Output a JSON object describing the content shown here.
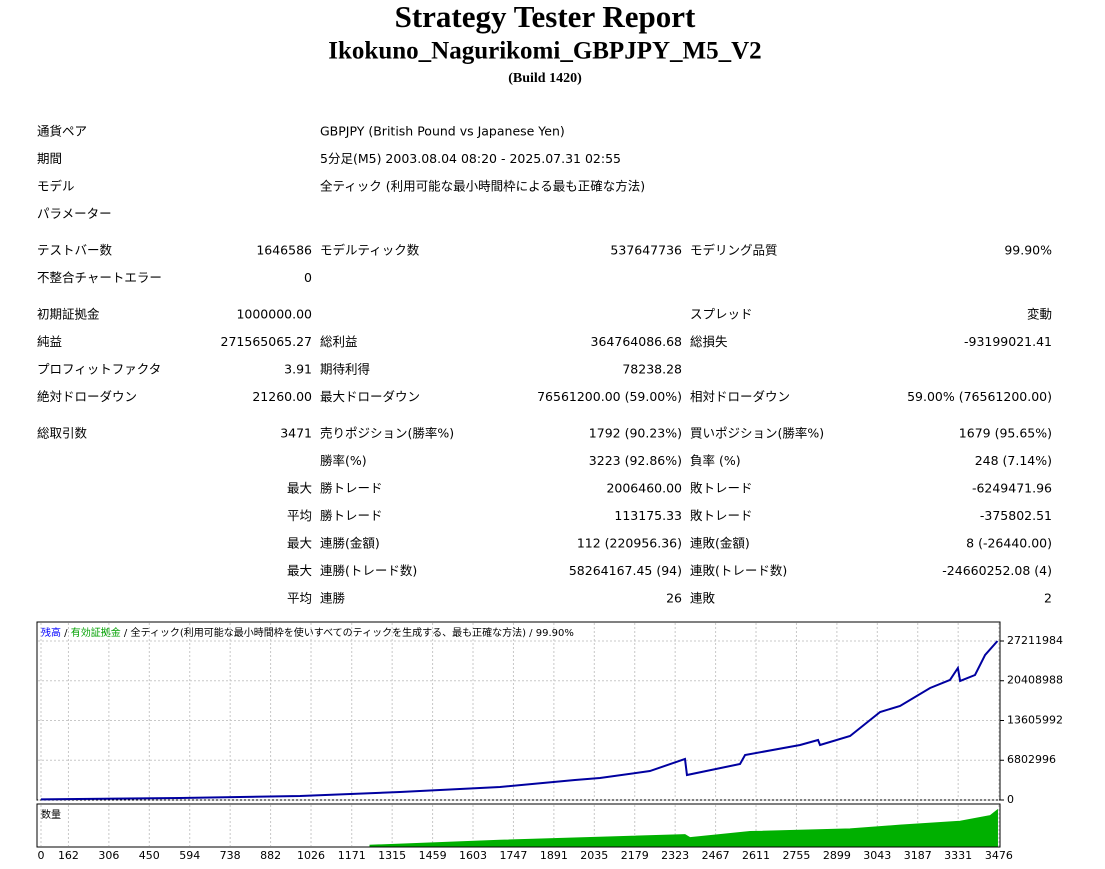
{
  "header": {
    "title": "Strategy Tester Report",
    "subtitle": "Ikokuno_Nagurikomi_GBPJPY_M5_V2",
    "build": "(Build 1420)"
  },
  "table": {
    "sections": [
      [
        [
          "通貨ペア",
          null,
          "GBPJPY (British Pound vs Japanese Yen)"
        ],
        [
          "期間",
          null,
          "5分足(M5) 2003.08.04 08:20 - 2025.07.31 02:55"
        ],
        [
          "モデル",
          null,
          "全ティック (利用可能な最小時間枠による最も正確な方法)"
        ],
        [
          "パラメーター"
        ]
      ],
      [
        [
          "テストバー数",
          "1646586",
          "モデルティック数",
          "537647736",
          "モデリング品質",
          "99.90%"
        ],
        [
          "不整合チャートエラー",
          "0"
        ]
      ],
      [
        [
          "初期証拠金",
          "1000000.00",
          null,
          null,
          "スプレッド",
          "変動"
        ],
        [
          "純益",
          "271565065.27",
          "総利益",
          "364764086.68",
          "総損失",
          "-93199021.41"
        ],
        [
          "プロフィットファクタ",
          "3.91",
          "期待利得",
          "78238.28"
        ],
        [
          "絶対ドローダウン",
          "21260.00",
          "最大ドローダウン",
          "76561200.00 (59.00%)",
          "相対ドローダウン",
          "59.00% (76561200.00)"
        ]
      ],
      [
        [
          "総取引数",
          "3471",
          "売りポジション(勝率%)",
          "1792 (90.23%)",
          "買いポジション(勝率%)",
          "1679 (95.65%)"
        ],
        [
          null,
          null,
          "勝率(%)",
          "3223 (92.86%)",
          "負率 (%)",
          "248 (7.14%)"
        ],
        [
          null,
          "最大",
          "勝トレード",
          "2006460.00",
          "敗トレード",
          "-6249471.96"
        ],
        [
          null,
          "平均",
          "勝トレード",
          "113175.33",
          "敗トレード",
          "-375802.51"
        ],
        [
          null,
          "最大",
          "連勝(金額)",
          "112 (220956.36)",
          "連敗(金額)",
          "8 (-26440.00)"
        ],
        [
          null,
          "最大",
          "連勝(トレード数)",
          "58264167.45 (94)",
          "連敗(トレード数)",
          "-24660252.08 (4)"
        ],
        [
          null,
          "平均",
          "連勝",
          "26",
          "連敗",
          "2"
        ]
      ]
    ]
  },
  "chart_data": {
    "type": "line",
    "legend": [
      "残高",
      "有効証拠金",
      "全ティック(利用可能な最小時間枠を使いすべてのティックを生成する、最も正確な方法)",
      "99.90%"
    ],
    "legend_colors": [
      "#0000ff",
      "#00a000",
      "#000000",
      "#000000"
    ],
    "legend_separator": " / ",
    "xlim": [
      50,
      3480
    ],
    "xticks": [
      0,
      162,
      306,
      450,
      594,
      738,
      882,
      1026,
      1171,
      1315,
      1459,
      1603,
      1747,
      1891,
      2035,
      2179,
      2323,
      2467,
      2611,
      2755,
      2899,
      3043,
      3187,
      3331,
      3476
    ],
    "ylim": [
      0,
      28750000
    ],
    "yticks": [
      0,
      6802996,
      13605992,
      20408988,
      27211984
    ],
    "grid": true,
    "series": [
      {
        "name": "残高",
        "color": "#0000a0",
        "x": [
          64,
          559,
          987,
          1343,
          1699,
          1966,
          2055,
          2233,
          2358,
          2365,
          2554,
          2572,
          2768,
          2832,
          2839,
          2946,
          3053,
          3124,
          3231,
          3302,
          3330,
          3338,
          3391,
          3427,
          3471
        ],
        "values": [
          100000,
          340000,
          680000,
          1370000,
          2220000,
          3420000,
          3770000,
          4960000,
          7020000,
          4280000,
          6160000,
          7700000,
          9410000,
          10270000,
          9410000,
          10950000,
          15060000,
          16090000,
          19170000,
          20540000,
          22590000,
          20370000,
          21390000,
          24820000,
          27211984
        ]
      }
    ],
    "volume": {
      "label": "数量",
      "color": "#00b000",
      "ylim": [
        0,
        1
      ],
      "x": [
        1236,
        1699,
        2358,
        2376,
        2590,
        2946,
        3124,
        3338,
        3445,
        3471
      ],
      "values": [
        0.02,
        0.15,
        0.3,
        0.22,
        0.38,
        0.45,
        0.55,
        0.65,
        0.8,
        0.95
      ]
    }
  }
}
